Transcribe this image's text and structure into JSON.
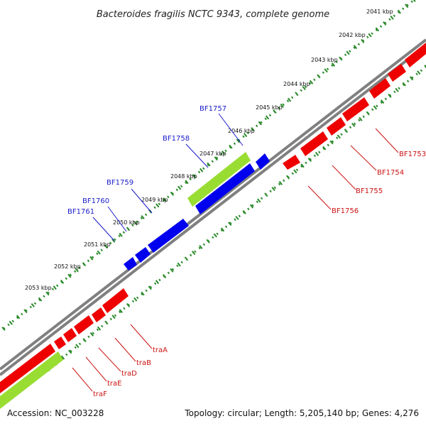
{
  "title": "Bacteroides fragilis NCTC 9343, complete genome",
  "footer": {
    "accession": "Accession: NC_003228",
    "summary": "Topology: circular; Length: 5,205,140 bp; Genes: 4,276"
  },
  "colors": {
    "backbone": "#808080",
    "forward_gene": "#0000ee",
    "reverse_gene": "#ee0000",
    "feature": "#99dd33",
    "ticks": "#2a8a2a"
  },
  "scale_labels": [
    "2041 kbp",
    "2042 kbp",
    "2043 kbp",
    "2044 kbp",
    "2045 kbp",
    "2046 kbp",
    "2047 kbp",
    "2048 kbp",
    "2049 kbp",
    "2050 kbp",
    "2051 kbp",
    "2052 kbp",
    "2053 kbp"
  ],
  "forward_gene_labels": [
    "BF1757",
    "BF1758",
    "BF1759",
    "BF1760",
    "BF1761"
  ],
  "reverse_gene_labels": [
    "BF1753",
    "BF1754",
    "BF1755",
    "BF1756",
    "traA",
    "traB",
    "traD",
    "traE",
    "traF"
  ]
}
